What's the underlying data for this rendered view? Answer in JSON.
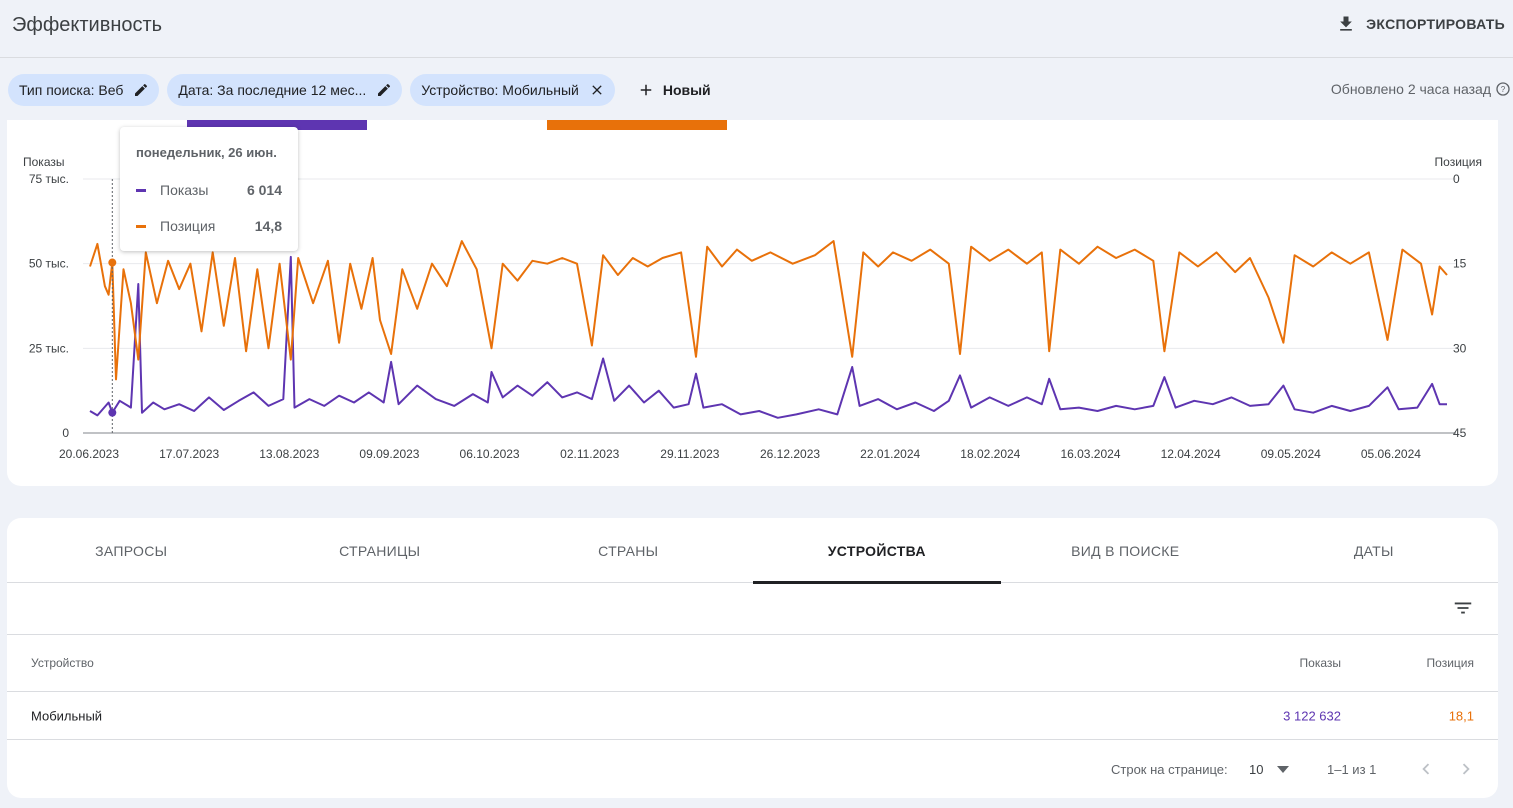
{
  "header": {
    "title": "Эффективность",
    "export_label": "ЭКСПОРТИРОВАТЬ"
  },
  "filters": {
    "chips": [
      {
        "label": "Тип поиска: Веб"
      },
      {
        "label": "Дата: За последние 12 мес..."
      },
      {
        "label": "Устройство: Мобильный"
      }
    ],
    "new_label": "Новый",
    "updated": "Обновлено 2 часа назад"
  },
  "colors": {
    "impressions": "#5e35b1",
    "position": "#e8710a"
  },
  "tooltip": {
    "date": "понедельник, 26 июн.",
    "rows": [
      {
        "name": "Показы",
        "value": "6 014"
      },
      {
        "name": "Позиция",
        "value": "14,8"
      }
    ]
  },
  "chart_data": {
    "type": "line",
    "left_axis": {
      "label": "Показы",
      "ticks": [
        "75 тыс.",
        "50 тыс.",
        "25 тыс.",
        "0"
      ],
      "range": [
        0,
        75000
      ]
    },
    "right_axis": {
      "label": "Позиция",
      "ticks": [
        "0",
        "15",
        "30",
        "45"
      ],
      "range": [
        0,
        45
      ],
      "inverted": true
    },
    "x_ticks": [
      "20.06.2023",
      "17.07.2023",
      "13.08.2023",
      "09.09.2023",
      "06.10.2023",
      "02.11.2023",
      "29.11.2023",
      "26.12.2023",
      "22.01.2024",
      "18.02.2024",
      "16.03.2024",
      "12.04.2024",
      "09.05.2024",
      "05.06.2024"
    ],
    "x_range": [
      "2023-06-20",
      "2024-06-19"
    ],
    "grid": true,
    "series": [
      {
        "name": "Показы",
        "axis": "left",
        "points": [
          [
            "2023-06-20",
            6500
          ],
          [
            "2023-06-22",
            5200
          ],
          [
            "2023-06-25",
            9000
          ],
          [
            "2023-06-26",
            6014
          ],
          [
            "2023-06-28",
            9500
          ],
          [
            "2023-07-01",
            7500
          ],
          [
            "2023-07-03",
            44000
          ],
          [
            "2023-07-04",
            6000
          ],
          [
            "2023-07-07",
            9000
          ],
          [
            "2023-07-10",
            7000
          ],
          [
            "2023-07-14",
            8500
          ],
          [
            "2023-07-18",
            6500
          ],
          [
            "2023-07-22",
            10500
          ],
          [
            "2023-07-26",
            6800
          ],
          [
            "2023-07-30",
            9500
          ],
          [
            "2023-08-03",
            12000
          ],
          [
            "2023-08-07",
            8000
          ],
          [
            "2023-08-11",
            10000
          ],
          [
            "2023-08-13",
            52000
          ],
          [
            "2023-08-14",
            7500
          ],
          [
            "2023-08-18",
            10000
          ],
          [
            "2023-08-22",
            8000
          ],
          [
            "2023-08-26",
            11000
          ],
          [
            "2023-08-30",
            9000
          ],
          [
            "2023-09-03",
            12000
          ],
          [
            "2023-09-07",
            9000
          ],
          [
            "2023-09-09",
            21000
          ],
          [
            "2023-09-11",
            8500
          ],
          [
            "2023-09-16",
            14000
          ],
          [
            "2023-09-21",
            10000
          ],
          [
            "2023-09-26",
            8000
          ],
          [
            "2023-10-01",
            11500
          ],
          [
            "2023-10-05",
            9000
          ],
          [
            "2023-10-06",
            18000
          ],
          [
            "2023-10-09",
            10500
          ],
          [
            "2023-10-13",
            14000
          ],
          [
            "2023-10-17",
            11000
          ],
          [
            "2023-10-21",
            15000
          ],
          [
            "2023-10-25",
            10500
          ],
          [
            "2023-10-29",
            12000
          ],
          [
            "2023-11-02",
            10000
          ],
          [
            "2023-11-05",
            22000
          ],
          [
            "2023-11-08",
            9500
          ],
          [
            "2023-11-12",
            14000
          ],
          [
            "2023-11-16",
            9000
          ],
          [
            "2023-11-20",
            12500
          ],
          [
            "2023-11-24",
            7500
          ],
          [
            "2023-11-28",
            8500
          ],
          [
            "2023-11-30",
            17500
          ],
          [
            "2023-12-02",
            7500
          ],
          [
            "2023-12-07",
            8500
          ],
          [
            "2023-12-12",
            5500
          ],
          [
            "2023-12-17",
            6500
          ],
          [
            "2023-12-22",
            4500
          ],
          [
            "2023-12-27",
            5500
          ],
          [
            "2024-01-02",
            7000
          ],
          [
            "2024-01-07",
            5500
          ],
          [
            "2024-01-11",
            19500
          ],
          [
            "2024-01-13",
            8000
          ],
          [
            "2024-01-18",
            10000
          ],
          [
            "2024-01-23",
            7000
          ],
          [
            "2024-01-28",
            9000
          ],
          [
            "2024-02-02",
            6500
          ],
          [
            "2024-02-06",
            9500
          ],
          [
            "2024-02-09",
            17000
          ],
          [
            "2024-02-12",
            7500
          ],
          [
            "2024-02-17",
            10500
          ],
          [
            "2024-02-22",
            8000
          ],
          [
            "2024-02-27",
            10500
          ],
          [
            "2024-03-02",
            8500
          ],
          [
            "2024-03-04",
            16000
          ],
          [
            "2024-03-07",
            7000
          ],
          [
            "2024-03-12",
            7500
          ],
          [
            "2024-03-17",
            6500
          ],
          [
            "2024-03-22",
            8000
          ],
          [
            "2024-03-27",
            7000
          ],
          [
            "2024-04-01",
            8000
          ],
          [
            "2024-04-04",
            16500
          ],
          [
            "2024-04-07",
            7500
          ],
          [
            "2024-04-12",
            9500
          ],
          [
            "2024-04-17",
            8500
          ],
          [
            "2024-04-22",
            10500
          ],
          [
            "2024-04-27",
            8000
          ],
          [
            "2024-05-02",
            8500
          ],
          [
            "2024-05-06",
            14000
          ],
          [
            "2024-05-09",
            7000
          ],
          [
            "2024-05-14",
            6000
          ],
          [
            "2024-05-19",
            8000
          ],
          [
            "2024-05-24",
            6500
          ],
          [
            "2024-05-29",
            8000
          ],
          [
            "2024-06-03",
            13500
          ],
          [
            "2024-06-06",
            7000
          ],
          [
            "2024-06-11",
            7500
          ],
          [
            "2024-06-15",
            14500
          ],
          [
            "2024-06-17",
            8500
          ],
          [
            "2024-06-19",
            8500
          ]
        ]
      },
      {
        "name": "Позиция",
        "axis": "right",
        "points": [
          [
            "2023-06-20",
            15.5
          ],
          [
            "2023-06-22",
            11.5
          ],
          [
            "2023-06-24",
            19.0
          ],
          [
            "2023-06-25",
            20.5
          ],
          [
            "2023-06-26",
            14.8
          ],
          [
            "2023-06-27",
            35.5
          ],
          [
            "2023-06-29",
            16.0
          ],
          [
            "2023-07-01",
            22.0
          ],
          [
            "2023-07-03",
            32.0
          ],
          [
            "2023-07-05",
            13.0
          ],
          [
            "2023-07-08",
            22.0
          ],
          [
            "2023-07-11",
            14.5
          ],
          [
            "2023-07-14",
            19.5
          ],
          [
            "2023-07-17",
            15.0
          ],
          [
            "2023-07-20",
            27.0
          ],
          [
            "2023-07-23",
            13.0
          ],
          [
            "2023-07-26",
            26.0
          ],
          [
            "2023-07-29",
            14.0
          ],
          [
            "2023-08-01",
            30.5
          ],
          [
            "2023-08-04",
            16.0
          ],
          [
            "2023-08-07",
            30.0
          ],
          [
            "2023-08-10",
            15.0
          ],
          [
            "2023-08-13",
            32.0
          ],
          [
            "2023-08-15",
            14.0
          ],
          [
            "2023-08-19",
            22.0
          ],
          [
            "2023-08-23",
            14.5
          ],
          [
            "2023-08-26",
            29.0
          ],
          [
            "2023-08-29",
            15.0
          ],
          [
            "2023-09-01",
            23.0
          ],
          [
            "2023-09-04",
            14.0
          ],
          [
            "2023-09-06",
            25.0
          ],
          [
            "2023-09-09",
            31.0
          ],
          [
            "2023-09-12",
            16.0
          ],
          [
            "2023-09-16",
            23.0
          ],
          [
            "2023-09-20",
            15.0
          ],
          [
            "2023-09-24",
            19.0
          ],
          [
            "2023-09-28",
            11.0
          ],
          [
            "2023-10-02",
            16.0
          ],
          [
            "2023-10-06",
            30.0
          ],
          [
            "2023-10-09",
            15.0
          ],
          [
            "2023-10-13",
            18.0
          ],
          [
            "2023-10-17",
            14.5
          ],
          [
            "2023-10-21",
            15.0
          ],
          [
            "2023-10-25",
            14.0
          ],
          [
            "2023-10-29",
            15.0
          ],
          [
            "2023-11-02",
            29.5
          ],
          [
            "2023-11-05",
            13.5
          ],
          [
            "2023-11-09",
            17.0
          ],
          [
            "2023-11-13",
            14.0
          ],
          [
            "2023-11-17",
            15.5
          ],
          [
            "2023-11-21",
            14.0
          ],
          [
            "2023-11-26",
            13.0
          ],
          [
            "2023-11-30",
            31.5
          ],
          [
            "2023-12-03",
            12.0
          ],
          [
            "2023-12-07",
            15.5
          ],
          [
            "2023-12-11",
            12.5
          ],
          [
            "2023-12-15",
            14.5
          ],
          [
            "2023-12-20",
            13.0
          ],
          [
            "2023-12-26",
            15.0
          ],
          [
            "2024-01-01",
            13.5
          ],
          [
            "2024-01-06",
            11.0
          ],
          [
            "2024-01-11",
            31.5
          ],
          [
            "2024-01-14",
            13.0
          ],
          [
            "2024-01-18",
            15.5
          ],
          [
            "2024-01-22",
            13.0
          ],
          [
            "2024-01-27",
            14.5
          ],
          [
            "2024-02-01",
            12.5
          ],
          [
            "2024-02-06",
            15.0
          ],
          [
            "2024-02-09",
            31.0
          ],
          [
            "2024-02-12",
            12.0
          ],
          [
            "2024-02-17",
            14.5
          ],
          [
            "2024-02-22",
            12.5
          ],
          [
            "2024-02-27",
            15.0
          ],
          [
            "2024-03-02",
            13.0
          ],
          [
            "2024-03-04",
            30.5
          ],
          [
            "2024-03-07",
            12.5
          ],
          [
            "2024-03-12",
            15.0
          ],
          [
            "2024-03-17",
            12.0
          ],
          [
            "2024-03-22",
            14.0
          ],
          [
            "2024-03-27",
            12.5
          ],
          [
            "2024-04-01",
            14.5
          ],
          [
            "2024-04-04",
            30.5
          ],
          [
            "2024-04-08",
            13.0
          ],
          [
            "2024-04-13",
            15.5
          ],
          [
            "2024-04-18",
            13.0
          ],
          [
            "2024-04-23",
            16.5
          ],
          [
            "2024-04-27",
            14.0
          ],
          [
            "2024-05-02",
            21.0
          ],
          [
            "2024-05-06",
            29.0
          ],
          [
            "2024-05-09",
            13.5
          ],
          [
            "2024-05-14",
            15.5
          ],
          [
            "2024-05-19",
            13.0
          ],
          [
            "2024-05-24",
            15.0
          ],
          [
            "2024-05-29",
            13.0
          ],
          [
            "2024-06-03",
            28.5
          ],
          [
            "2024-06-07",
            12.5
          ],
          [
            "2024-06-12",
            15.0
          ],
          [
            "2024-06-15",
            24.0
          ],
          [
            "2024-06-17",
            15.5
          ],
          [
            "2024-06-19",
            17.0
          ]
        ]
      }
    ],
    "hover": {
      "date": "2023-06-26",
      "impressions": 6014,
      "position": 14.8
    }
  },
  "tabs": [
    {
      "label": "ЗАПРОСЫ"
    },
    {
      "label": "СТРАНИЦЫ"
    },
    {
      "label": "СТРАНЫ"
    },
    {
      "label": "УСТРОЙСТВА",
      "active": true
    },
    {
      "label": "ВИД В ПОИСКЕ"
    },
    {
      "label": "ДАТЫ"
    }
  ],
  "table": {
    "headers": {
      "device": "Устройство",
      "impressions": "Показы",
      "position": "Позиция"
    },
    "rows": [
      {
        "device": "Мобильный",
        "impressions": "3 122 632",
        "position": "18,1"
      }
    ]
  },
  "pagination": {
    "rows_label": "Строк на странице:",
    "rows_value": "10",
    "range": "1–1 из 1"
  }
}
